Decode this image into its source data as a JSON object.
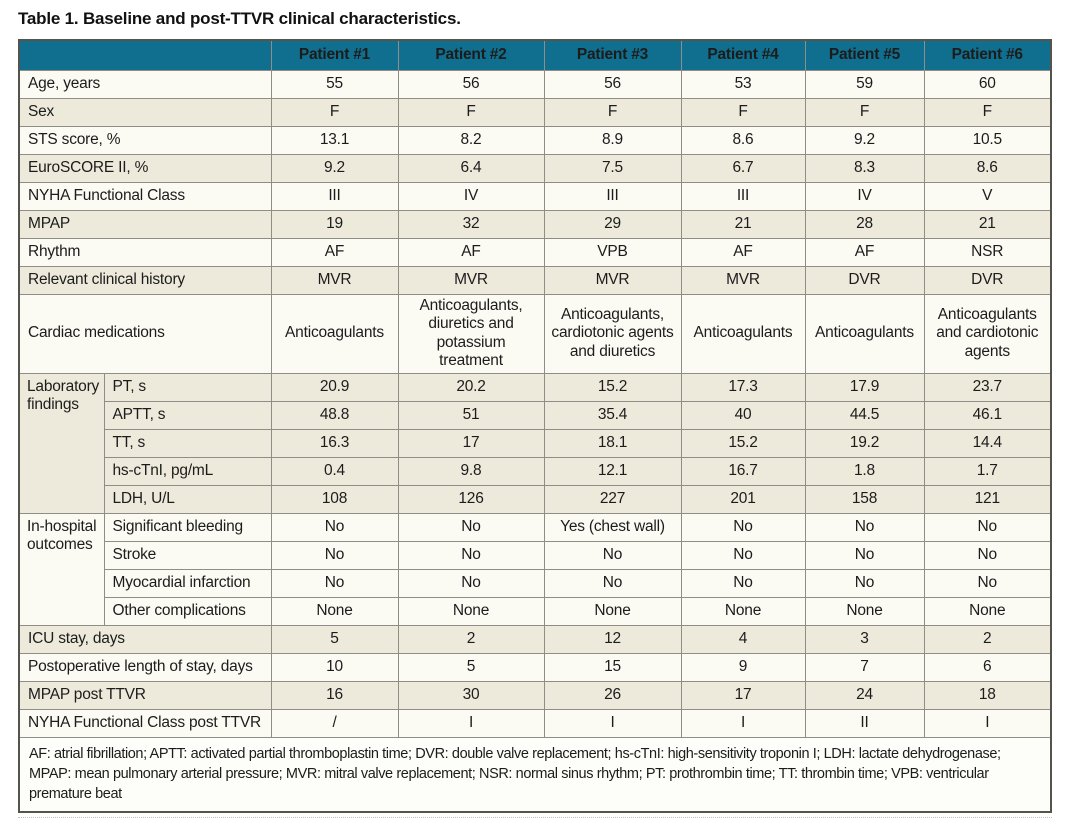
{
  "title": "Table 1. Baseline and post-TTVR clinical characteristics.",
  "table": {
    "corner_label": "",
    "columns": [
      "Patient #1",
      "Patient #2",
      "Patient #3",
      "Patient #4",
      "Patient #5",
      "Patient #6"
    ],
    "rows": [
      {
        "label": "Age, years",
        "shade": "light",
        "values": [
          "55",
          "56",
          "56",
          "53",
          "59",
          "60"
        ]
      },
      {
        "label": "Sex",
        "shade": "dark",
        "values": [
          "F",
          "F",
          "F",
          "F",
          "F",
          "F"
        ]
      },
      {
        "label": "STS score, %",
        "shade": "light",
        "values": [
          "13.1",
          "8.2",
          "8.9",
          "8.6",
          "9.2",
          "10.5"
        ]
      },
      {
        "label": "EuroSCORE II, %",
        "shade": "dark",
        "values": [
          "9.2",
          "6.4",
          "7.5",
          "6.7",
          "8.3",
          "8.6"
        ]
      },
      {
        "label": "NYHA Functional Class",
        "shade": "light",
        "values": [
          "III",
          "IV",
          "III",
          "III",
          "IV",
          "V"
        ]
      },
      {
        "label": "MPAP",
        "shade": "dark",
        "values": [
          "19",
          "32",
          "29",
          "21",
          "28",
          "21"
        ]
      },
      {
        "label": "Rhythm",
        "shade": "light",
        "values": [
          "AF",
          "AF",
          "VPB",
          "AF",
          "AF",
          "NSR"
        ]
      },
      {
        "label": "Relevant clinical history",
        "shade": "dark",
        "values": [
          "MVR",
          "MVR",
          "MVR",
          "MVR",
          "DVR",
          "DVR"
        ]
      },
      {
        "label": "Cardiac medications",
        "shade": "light",
        "values": [
          "Anticoagulants",
          "Anticoagulants, diuretics and potassium treatment",
          "Anticoagulants, cardiotonic agents and diuretics",
          "Anticoagulants",
          "Anticoagulants",
          "Anticoagulants and cardiotonic agents"
        ]
      },
      {
        "group": {
          "label": "Laboratory findings",
          "span": 5
        },
        "in_group": true,
        "label": "PT, s",
        "shade": "dark",
        "values": [
          "20.9",
          "20.2",
          "15.2",
          "17.3",
          "17.9",
          "23.7"
        ]
      },
      {
        "in_group": true,
        "label": "APTT, s",
        "shade": "dark",
        "values": [
          "48.8",
          "51",
          "35.4",
          "40",
          "44.5",
          "46.1"
        ]
      },
      {
        "in_group": true,
        "label": "TT, s",
        "shade": "dark",
        "values": [
          "16.3",
          "17",
          "18.1",
          "15.2",
          "19.2",
          "14.4"
        ]
      },
      {
        "in_group": true,
        "label": "hs-cTnI, pg/mL",
        "shade": "dark",
        "values": [
          "0.4",
          "9.8",
          "12.1",
          "16.7",
          "1.8",
          "1.7"
        ]
      },
      {
        "in_group": true,
        "label": "LDH, U/L",
        "shade": "dark",
        "values": [
          "108",
          "126",
          "227",
          "201",
          "158",
          "121"
        ]
      },
      {
        "group": {
          "label": "In-hospital outcomes",
          "span": 4
        },
        "in_group": true,
        "label": "Significant bleeding",
        "shade": "light",
        "values": [
          "No",
          "No",
          "Yes (chest wall)",
          "No",
          "No",
          "No"
        ]
      },
      {
        "in_group": true,
        "label": "Stroke",
        "shade": "light",
        "values": [
          "No",
          "No",
          "No",
          "No",
          "No",
          "No"
        ]
      },
      {
        "in_group": true,
        "label": "Myocardial infarction",
        "shade": "light",
        "values": [
          "No",
          "No",
          "No",
          "No",
          "No",
          "No"
        ]
      },
      {
        "in_group": true,
        "label": "Other complications",
        "shade": "light",
        "values": [
          "None",
          "None",
          "None",
          "None",
          "None",
          "None"
        ]
      },
      {
        "label": "ICU stay, days",
        "shade": "dark",
        "values": [
          "5",
          "2",
          "12",
          "4",
          "3",
          "2"
        ]
      },
      {
        "label": "Postoperative length of stay, days",
        "shade": "light",
        "values": [
          "10",
          "5",
          "15",
          "9",
          "7",
          "6"
        ]
      },
      {
        "label": "MPAP post TTVR",
        "shade": "dark",
        "values": [
          "16",
          "30",
          "26",
          "17",
          "24",
          "18"
        ]
      },
      {
        "label": "NYHA Functional Class post TTVR",
        "shade": "light",
        "values": [
          "/",
          "I",
          "I",
          "I",
          "II",
          "I"
        ]
      }
    ],
    "footnote": "AF: atrial fibrillation; APTT: activated partial thromboplastin time; DVR: double valve replacement; hs-cTnI: high-sensitivity troponin I; LDH: lactate dehydrogenase; MPAP: mean pulmonary arterial pressure; MVR: mitral valve replacement; NSR: normal sinus rhythm; PT: prothrombin time; TT: thrombin time; VPB: ventricular premature beat"
  },
  "colors": {
    "header_bg": "#106f8e",
    "header_text": "#ffffff",
    "row_light": "#fbfaf3",
    "row_dark": "#edeadb",
    "border_inner": "#8f8e86",
    "border_outer": "#55544c",
    "text": "#1c1c1c"
  }
}
